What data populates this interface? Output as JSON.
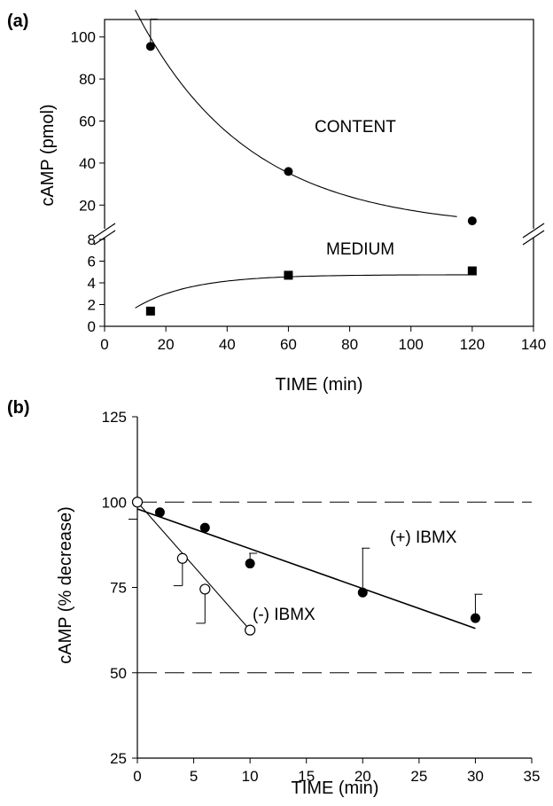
{
  "chart_data": [
    {
      "panel_label": "(a)",
      "type": "scatter",
      "xlabel": "TIME (min)",
      "ylabel": "cAMP (pmol)",
      "xlim": [
        0,
        140
      ],
      "x_ticks": [
        "0",
        "20",
        "40",
        "60",
        "80",
        "100",
        "120",
        "140"
      ],
      "axis_break": true,
      "upper_y_ticks": [
        "20",
        "40",
        "60",
        "80",
        "100"
      ],
      "lower_y_ticks": [
        "0",
        "2",
        "4",
        "6",
        "8"
      ],
      "upper_ylim": [
        10,
        110
      ],
      "lower_ylim": [
        0,
        8
      ],
      "series": [
        {
          "name": "CONTENT",
          "marker": "filled-circle",
          "x": [
            15,
            60,
            120
          ],
          "y": [
            95.5,
            36,
            12.5
          ],
          "error_up": [
            13,
            0,
            0
          ],
          "fit": "exponential decay"
        },
        {
          "name": "MEDIUM",
          "marker": "filled-square",
          "x": [
            15,
            60,
            120
          ],
          "y": [
            1.4,
            4.7,
            5.1
          ],
          "fit": "exponential rise"
        }
      ]
    },
    {
      "panel_label": "(b)",
      "type": "scatter",
      "xlabel": "TIME (min)",
      "ylabel": "cAMP  (% decrease)",
      "xlim": [
        0,
        35
      ],
      "ylim": [
        25,
        125
      ],
      "x_ticks": [
        "0",
        "5",
        "10",
        "15",
        "20",
        "25",
        "30",
        "35"
      ],
      "y_ticks": [
        "25",
        "50",
        "75",
        "100",
        "125"
      ],
      "reference_lines_y": [
        100,
        50
      ],
      "series": [
        {
          "name": "(+) IBMX",
          "marker": "filled-circle",
          "x": [
            0,
            2,
            6,
            10,
            20,
            30
          ],
          "y": [
            100,
            97,
            92.5,
            82,
            73.5,
            66
          ],
          "error_up": [
            0,
            0,
            0,
            3,
            13,
            7
          ],
          "fit": "linear"
        },
        {
          "name": "(-) IBMX",
          "marker": "open-circle",
          "x": [
            0,
            4,
            6,
            10
          ],
          "y": [
            100,
            83.5,
            74.5,
            62.5
          ],
          "error_down": [
            5,
            8,
            10,
            0
          ],
          "fit": "linear"
        }
      ]
    }
  ]
}
